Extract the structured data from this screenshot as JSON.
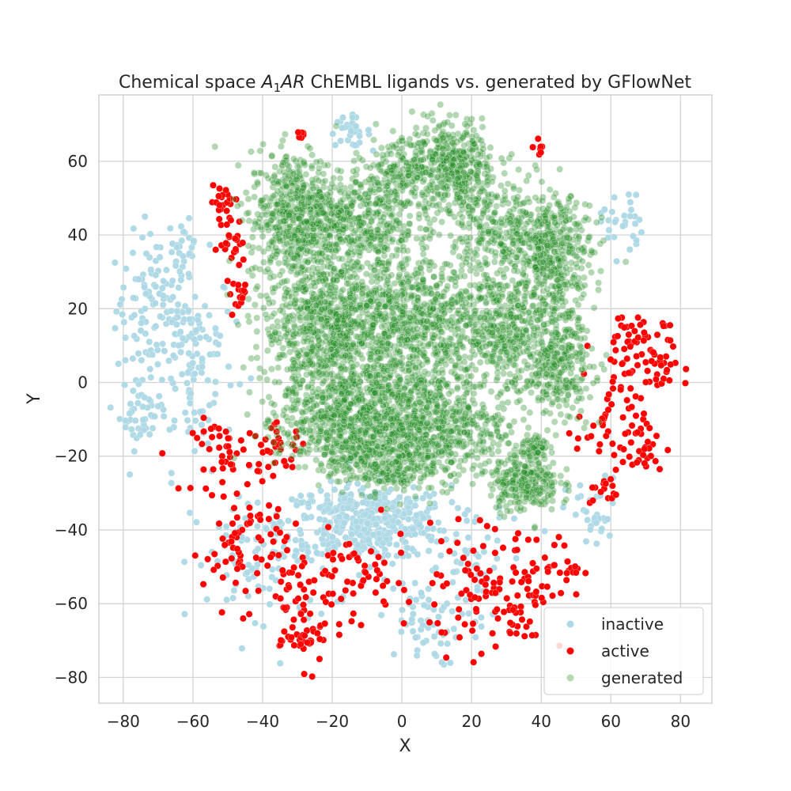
{
  "chart_data": {
    "type": "scatter",
    "title_prefix": "Chemical space ",
    "title_symbol": "A",
    "title_subscript": "1",
    "title_symbol_suffix": "AR",
    "title_suffix": " ChEMBL ligands vs. generated by GFlowNet",
    "xlabel": "X",
    "ylabel": "Y",
    "xlim": [
      -87,
      89
    ],
    "ylim": [
      -87,
      78
    ],
    "xticks": [
      -80,
      -60,
      -40,
      -20,
      0,
      20,
      40,
      60,
      80
    ],
    "yticks": [
      -80,
      -60,
      -40,
      -20,
      0,
      20,
      40,
      60
    ],
    "xtick_labels": [
      "−80",
      "−60",
      "−40",
      "−20",
      "0",
      "20",
      "40",
      "60",
      "80"
    ],
    "ytick_labels": [
      "−80",
      "−60",
      "−40",
      "−20",
      "0",
      "20",
      "40",
      "60"
    ],
    "grid": true,
    "legend_position": "lower-right",
    "series": [
      {
        "name": "inactive",
        "color": "#add8e6",
        "opacity": 0.95,
        "clusters": [
          {
            "cx": -70,
            "cy": 20,
            "sx": 6,
            "sy": 10,
            "n": 120
          },
          {
            "cx": -60,
            "cy": 5,
            "sx": 6,
            "sy": 14,
            "n": 110
          },
          {
            "cx": -75,
            "cy": -8,
            "sx": 3,
            "sy": 5,
            "n": 45
          },
          {
            "cx": -63,
            "cy": 38,
            "sx": 2,
            "sy": 3,
            "n": 18
          },
          {
            "cx": -15,
            "cy": 68,
            "sx": 3,
            "sy": 2,
            "n": 30
          },
          {
            "cx": -10,
            "cy": -38,
            "sx": 12,
            "sy": 5,
            "n": 420
          },
          {
            "cx": 5,
            "cy": -65,
            "sx": 6,
            "sy": 6,
            "n": 60
          },
          {
            "cx": 63,
            "cy": 44,
            "sx": 3,
            "sy": 5,
            "n": 30
          },
          {
            "cx": 55,
            "cy": -36,
            "sx": 4,
            "sy": 5,
            "n": 35
          },
          {
            "cx": -40,
            "cy": -50,
            "sx": 10,
            "sy": 10,
            "n": 80
          },
          {
            "cx": 20,
            "cy": -50,
            "sx": 8,
            "sy": 8,
            "n": 50
          }
        ]
      },
      {
        "name": "active",
        "color": "#ff0000",
        "opacity": 1,
        "clusters": [
          {
            "cx": -51,
            "cy": 49,
            "sx": 2,
            "sy": 2,
            "n": 20
          },
          {
            "cx": -49,
            "cy": 38,
            "sx": 2,
            "sy": 4,
            "n": 25
          },
          {
            "cx": -46,
            "cy": 24,
            "sx": 2,
            "sy": 2,
            "n": 15
          },
          {
            "cx": -50,
            "cy": -20,
            "sx": 5,
            "sy": 5,
            "n": 45
          },
          {
            "cx": -35,
            "cy": -18,
            "sx": 4,
            "sy": 3,
            "n": 30
          },
          {
            "cx": -45,
            "cy": -45,
            "sx": 6,
            "sy": 8,
            "n": 70
          },
          {
            "cx": -28,
            "cy": -60,
            "sx": 6,
            "sy": 8,
            "n": 60
          },
          {
            "cx": -27,
            "cy": -70,
            "sx": 3,
            "sy": 2,
            "n": 25
          },
          {
            "cx": -12,
            "cy": -52,
            "sx": 7,
            "sy": 6,
            "n": 45
          },
          {
            "cx": 20,
            "cy": -58,
            "sx": 8,
            "sy": 8,
            "n": 60
          },
          {
            "cx": 34,
            "cy": -55,
            "sx": 6,
            "sy": 9,
            "n": 60
          },
          {
            "cx": 65,
            "cy": 10,
            "sx": 5,
            "sy": 5,
            "n": 50
          },
          {
            "cx": 73,
            "cy": 5,
            "sx": 3,
            "sy": 5,
            "n": 30
          },
          {
            "cx": 60,
            "cy": -12,
            "sx": 5,
            "sy": 6,
            "n": 40
          },
          {
            "cx": 68,
            "cy": -18,
            "sx": 4,
            "sy": 4,
            "n": 30
          },
          {
            "cx": -29,
            "cy": 67,
            "sx": 1,
            "sy": 1,
            "n": 6
          },
          {
            "cx": 40,
            "cy": 64,
            "sx": 1,
            "sy": 1,
            "n": 8
          },
          {
            "cx": 46,
            "cy": -50,
            "sx": 3,
            "sy": 4,
            "n": 20
          },
          {
            "cx": 58,
            "cy": -30,
            "sx": 2,
            "sy": 2,
            "n": 15
          }
        ]
      },
      {
        "name": "generated",
        "color": "#228b22",
        "legend_color": "#b7d9b1",
        "opacity": 0.35,
        "clusters": [
          {
            "cx": -30,
            "cy": 45,
            "sx": 7,
            "sy": 9,
            "n": 600
          },
          {
            "cx": -10,
            "cy": 45,
            "sx": 7,
            "sy": 7,
            "n": 350
          },
          {
            "cx": 15,
            "cy": 58,
            "sx": 6,
            "sy": 7,
            "n": 420
          },
          {
            "cx": 0,
            "cy": 58,
            "sx": 5,
            "sy": 4,
            "n": 150
          },
          {
            "cx": 30,
            "cy": 40,
            "sx": 8,
            "sy": 8,
            "n": 320
          },
          {
            "cx": 45,
            "cy": 35,
            "sx": 5,
            "sy": 7,
            "n": 320
          },
          {
            "cx": -20,
            "cy": 15,
            "sx": 10,
            "sy": 10,
            "n": 900
          },
          {
            "cx": 5,
            "cy": 15,
            "sx": 10,
            "sy": 10,
            "n": 700
          },
          {
            "cx": 30,
            "cy": 15,
            "sx": 8,
            "sy": 10,
            "n": 500
          },
          {
            "cx": 45,
            "cy": 5,
            "sx": 5,
            "sy": 7,
            "n": 280
          },
          {
            "cx": -15,
            "cy": -10,
            "sx": 10,
            "sy": 7,
            "n": 700
          },
          {
            "cx": 10,
            "cy": -12,
            "sx": 10,
            "sy": 7,
            "n": 550
          },
          {
            "cx": -5,
            "cy": -22,
            "sx": 8,
            "sy": 4,
            "n": 260
          },
          {
            "cx": 35,
            "cy": -27,
            "sx": 5,
            "sy": 4,
            "n": 260
          },
          {
            "cx": 38,
            "cy": -18,
            "sx": 2,
            "sy": 2,
            "n": 60
          }
        ]
      }
    ]
  }
}
